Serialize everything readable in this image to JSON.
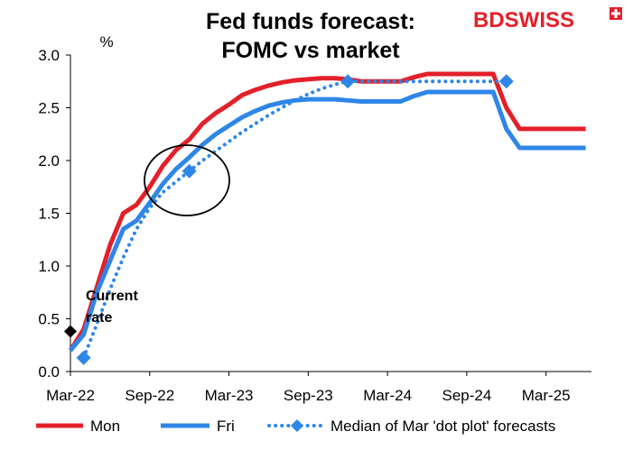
{
  "brand": {
    "part1": "BD",
    "part2": "SWISS"
  },
  "chart_data": {
    "type": "line",
    "title_lines": [
      "Fed funds forecast:",
      "FOMC vs market"
    ],
    "ylabel": "%",
    "xlabel": "",
    "ylim": [
      0,
      3
    ],
    "y_ticks": [
      "0.0",
      "0.5",
      "1.0",
      "1.5",
      "2.0",
      "2.5",
      "3.0"
    ],
    "x_ticks": [
      "Mar-22",
      "Sep-22",
      "Mar-23",
      "Sep-23",
      "Mar-24",
      "Sep-24",
      "Mar-25"
    ],
    "grid": false,
    "legend_position": "bottom",
    "series": [
      {
        "name": "Mon",
        "color": "#e3202a",
        "style": "solid",
        "points": [
          [
            "2022-03",
            0.2
          ],
          [
            "2022-04",
            0.4
          ],
          [
            "2022-05",
            0.8
          ],
          [
            "2022-06",
            1.2
          ],
          [
            "2022-07",
            1.5
          ],
          [
            "2022-08",
            1.58
          ],
          [
            "2022-09",
            1.75
          ],
          [
            "2022-10",
            1.95
          ],
          [
            "2022-11",
            2.1
          ],
          [
            "2022-12",
            2.2
          ],
          [
            "2023-01",
            2.35
          ],
          [
            "2023-02",
            2.45
          ],
          [
            "2023-03",
            2.53
          ],
          [
            "2023-04",
            2.62
          ],
          [
            "2023-05",
            2.67
          ],
          [
            "2023-06",
            2.71
          ],
          [
            "2023-07",
            2.74
          ],
          [
            "2023-08",
            2.76
          ],
          [
            "2023-09",
            2.77
          ],
          [
            "2023-10",
            2.78
          ],
          [
            "2023-11",
            2.78
          ],
          [
            "2023-12",
            2.77
          ],
          [
            "2024-01",
            2.75
          ],
          [
            "2024-02",
            2.75
          ],
          [
            "2024-03",
            2.75
          ],
          [
            "2024-04",
            2.75
          ],
          [
            "2024-05",
            2.79
          ],
          [
            "2024-06",
            2.82
          ],
          [
            "2024-07",
            2.82
          ],
          [
            "2024-08",
            2.82
          ],
          [
            "2024-09",
            2.82
          ],
          [
            "2024-10",
            2.82
          ],
          [
            "2024-11",
            2.82
          ],
          [
            "2024-12",
            2.5
          ],
          [
            "2025-01",
            2.3
          ],
          [
            "2025-02",
            2.3
          ],
          [
            "2025-03",
            2.3
          ],
          [
            "2025-04",
            2.3
          ],
          [
            "2025-05",
            2.3
          ],
          [
            "2025-06",
            2.3
          ]
        ]
      },
      {
        "name": "Fri",
        "color": "#2e86e8",
        "style": "solid",
        "points": [
          [
            "2022-03",
            0.2
          ],
          [
            "2022-04",
            0.35
          ],
          [
            "2022-05",
            0.75
          ],
          [
            "2022-06",
            1.05
          ],
          [
            "2022-07",
            1.35
          ],
          [
            "2022-08",
            1.43
          ],
          [
            "2022-09",
            1.6
          ],
          [
            "2022-10",
            1.78
          ],
          [
            "2022-11",
            1.92
          ],
          [
            "2022-12",
            2.03
          ],
          [
            "2023-01",
            2.15
          ],
          [
            "2023-02",
            2.25
          ],
          [
            "2023-03",
            2.33
          ],
          [
            "2023-04",
            2.41
          ],
          [
            "2023-05",
            2.47
          ],
          [
            "2023-06",
            2.52
          ],
          [
            "2023-07",
            2.55
          ],
          [
            "2023-08",
            2.57
          ],
          [
            "2023-09",
            2.58
          ],
          [
            "2023-10",
            2.58
          ],
          [
            "2023-11",
            2.58
          ],
          [
            "2023-12",
            2.57
          ],
          [
            "2024-01",
            2.56
          ],
          [
            "2024-02",
            2.56
          ],
          [
            "2024-03",
            2.56
          ],
          [
            "2024-04",
            2.56
          ],
          [
            "2024-05",
            2.61
          ],
          [
            "2024-06",
            2.65
          ],
          [
            "2024-07",
            2.65
          ],
          [
            "2024-08",
            2.65
          ],
          [
            "2024-09",
            2.65
          ],
          [
            "2024-10",
            2.65
          ],
          [
            "2024-11",
            2.65
          ],
          [
            "2024-12",
            2.3
          ],
          [
            "2025-01",
            2.12
          ],
          [
            "2025-02",
            2.12
          ],
          [
            "2025-03",
            2.12
          ],
          [
            "2025-04",
            2.12
          ],
          [
            "2025-05",
            2.12
          ],
          [
            "2025-06",
            2.12
          ]
        ]
      },
      {
        "name": "Median of Mar 'dot plot' forecasts",
        "color": "#2e86e8",
        "style": "dotted",
        "markers": [
          [
            "2022-04",
            0.13
          ],
          [
            "2022-12",
            1.9
          ],
          [
            "2023-12",
            2.75
          ],
          [
            "2024-12",
            2.75
          ]
        ],
        "points": [
          [
            "2022-04",
            0.13
          ],
          [
            "2022-05",
            0.45
          ],
          [
            "2022-06",
            0.78
          ],
          [
            "2022-07",
            1.08
          ],
          [
            "2022-08",
            1.35
          ],
          [
            "2022-09",
            1.55
          ],
          [
            "2022-10",
            1.7
          ],
          [
            "2022-11",
            1.8
          ],
          [
            "2022-12",
            1.9
          ],
          [
            "2023-01",
            2.0
          ],
          [
            "2023-02",
            2.09
          ],
          [
            "2023-03",
            2.18
          ],
          [
            "2023-04",
            2.27
          ],
          [
            "2023-05",
            2.35
          ],
          [
            "2023-06",
            2.43
          ],
          [
            "2023-07",
            2.5
          ],
          [
            "2023-08",
            2.57
          ],
          [
            "2023-09",
            2.63
          ],
          [
            "2023-10",
            2.68
          ],
          [
            "2023-11",
            2.72
          ],
          [
            "2023-12",
            2.75
          ],
          [
            "2024-01",
            2.75
          ],
          [
            "2024-03",
            2.75
          ],
          [
            "2024-06",
            2.75
          ],
          [
            "2024-09",
            2.75
          ],
          [
            "2024-12",
            2.75
          ]
        ]
      }
    ],
    "annotations": [
      {
        "text_lines": [
          "Current",
          "rate"
        ],
        "marker": "diamond",
        "color": "#000000",
        "x": "2022-03",
        "y": 0.38
      }
    ]
  }
}
